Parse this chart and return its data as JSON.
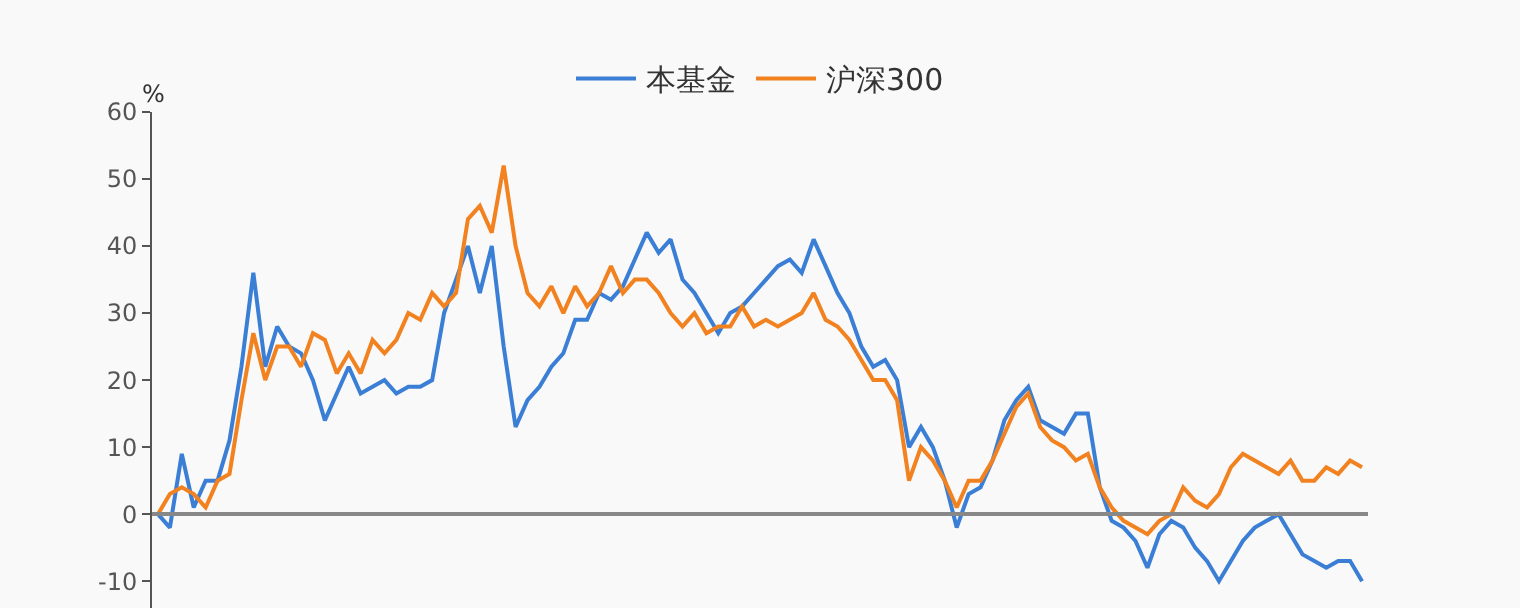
{
  "chart_data": {
    "type": "line",
    "ylabel": "%",
    "legend": "top",
    "marker": "none",
    "line_style": "solid",
    "ylim": [
      -14,
      60
    ],
    "yticks": [
      -10,
      0,
      10,
      20,
      30,
      40,
      50,
      60
    ],
    "categories": [
      null,
      null,
      null,
      null,
      null,
      null,
      null,
      null,
      null,
      null,
      null,
      null,
      null,
      null,
      null,
      null,
      null,
      null,
      null,
      null,
      null,
      null,
      null,
      null,
      null,
      null,
      null,
      null,
      null,
      null,
      null,
      null,
      null,
      null,
      null,
      null,
      null,
      null,
      null,
      null,
      null,
      null,
      null,
      null,
      null,
      null,
      null,
      null,
      null,
      null,
      null,
      null,
      null,
      null,
      null,
      null,
      null,
      null,
      null,
      null,
      null,
      null,
      null,
      null,
      null,
      null,
      null,
      null,
      null,
      null,
      null,
      null,
      null,
      null,
      null,
      null,
      null,
      null,
      null,
      null,
      null,
      null,
      null,
      null,
      null,
      null,
      null,
      null,
      null,
      null,
      null,
      null,
      null,
      null,
      null,
      null,
      null,
      null,
      null,
      null,
      null,
      null
    ],
    "series": [
      {
        "name": "本基金",
        "color": "#3a7fd5",
        "values": [
          0,
          -2,
          9,
          1,
          5,
          5,
          11,
          22,
          36,
          22,
          28,
          25,
          24,
          20,
          14,
          18,
          22,
          18,
          19,
          20,
          18,
          19,
          19,
          20,
          30,
          35,
          40,
          33,
          40,
          25,
          13,
          17,
          19,
          22,
          24,
          29,
          29,
          33,
          32,
          34,
          38,
          42,
          39,
          41,
          35,
          33,
          30,
          27,
          30,
          31,
          33,
          35,
          37,
          38,
          36,
          41,
          37,
          33,
          30,
          25,
          22,
          23,
          20,
          10,
          13,
          10,
          5,
          -2,
          3,
          4,
          8,
          14,
          17,
          19,
          14,
          13,
          12,
          15,
          15,
          4,
          -1,
          -2,
          -4,
          -8,
          -3,
          -1,
          -2,
          -5,
          -7,
          -10,
          -7,
          -4,
          -2,
          -1,
          0,
          -3,
          -6,
          -7,
          -8,
          -7,
          -7,
          -10
        ]
      },
      {
        "name": "沪深300",
        "color": "#f28120",
        "values": [
          0,
          3,
          4,
          3,
          1,
          5,
          6,
          17,
          27,
          20,
          25,
          25,
          22,
          27,
          26,
          21,
          24,
          21,
          26,
          24,
          26,
          30,
          29,
          33,
          31,
          33,
          44,
          46,
          42,
          52,
          40,
          33,
          31,
          34,
          30,
          34,
          31,
          33,
          37,
          33,
          35,
          35,
          33,
          30,
          28,
          30,
          27,
          28,
          28,
          31,
          28,
          29,
          28,
          29,
          30,
          33,
          29,
          28,
          26,
          23,
          20,
          20,
          17,
          5,
          10,
          8,
          5,
          1,
          5,
          5,
          8,
          12,
          16,
          18,
          13,
          11,
          10,
          8,
          9,
          4,
          1,
          -1,
          -2,
          -3,
          -1,
          0,
          4,
          2,
          1,
          3,
          7,
          9,
          8,
          7,
          6,
          8,
          5,
          5,
          7,
          6,
          8,
          7
        ]
      }
    ]
  }
}
